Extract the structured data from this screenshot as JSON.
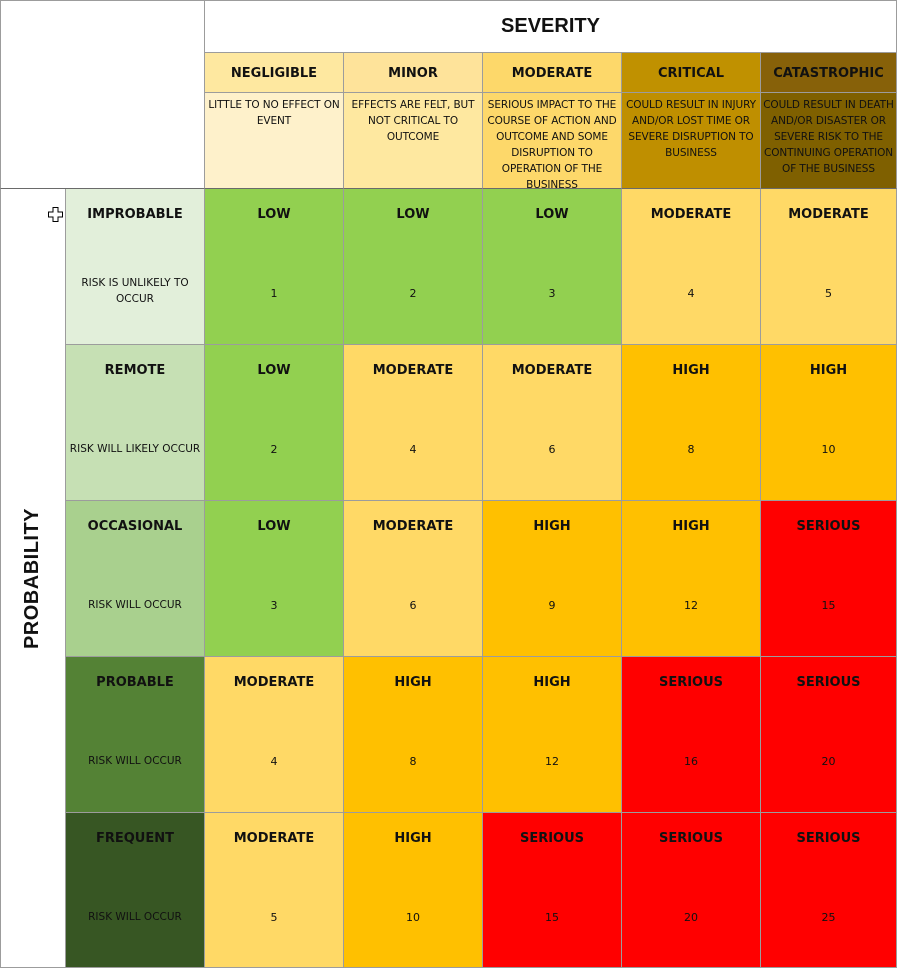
{
  "severity": {
    "title": "SEVERITY",
    "columns": [
      {
        "label": "NEGLIGIBLE",
        "description": "LITTLE TO NO EFFECT ON EVENT",
        "head_color": "#fee8a0",
        "desc_color": "#fef1cb"
      },
      {
        "label": "MINOR",
        "description": "EFFECTS ARE FELT, BUT NOT CRITICAL TO OUTCOME",
        "head_color": "#fee39a",
        "desc_color": "#fee8a0"
      },
      {
        "label": "MODERATE",
        "description": "SERIOUS IMPACT TO THE COURSE OF ACTION AND OUTCOME AND SOME DISRUPTION TO OPERATION OF THE BUSINESS",
        "head_color": "#fdd86a",
        "desc_color": "#fdd86a"
      },
      {
        "label": "CRITICAL",
        "description": "COULD RESULT IN INJURY AND/OR LOST TIME OR SEVERE DISRUPTION TO BUSINESS",
        "head_color": "#c09100",
        "desc_color": "#bf8f00"
      },
      {
        "label": "CATASTROPHIC",
        "description": "COULD RESULT IN DEATH AND/OR DISASTER OR SEVERE RISK TO THE CONTINUING OPERATION OF THE BUSINESS",
        "head_color": "#876109",
        "desc_color": "#7f6000"
      }
    ]
  },
  "probability": {
    "title": "PROBABILITY",
    "rows": [
      {
        "label": "IMPROBABLE",
        "description": "RISK IS UNLIKELY TO OCCUR",
        "color": "#e2efda",
        "text_color": "#111111"
      },
      {
        "label": "REMOTE",
        "description": "RISK WILL LIKELY OCCUR",
        "color": "#c6e0b4",
        "text_color": "#111111"
      },
      {
        "label": "OCCASIONAL",
        "description": "RISK WILL OCCUR",
        "color": "#a9d08e",
        "text_color": "#111111"
      },
      {
        "label": "PROBABLE",
        "description": "RISK WILL OCCUR",
        "color": "#548235",
        "text_color": "#111111"
      },
      {
        "label": "FREQUENT",
        "description": "RISK WILL OCCUR",
        "color": "#375623",
        "text_color": "#111111"
      }
    ]
  },
  "risk_colors": {
    "LOW": "#92d050",
    "MODERATE": "#ffd966",
    "HIGH": "#ffc000",
    "SERIOUS": "#ff0000"
  },
  "matrix": [
    [
      {
        "level": "LOW",
        "score": "1"
      },
      {
        "level": "LOW",
        "score": "2"
      },
      {
        "level": "LOW",
        "score": "3"
      },
      {
        "level": "MODERATE",
        "score": "4"
      },
      {
        "level": "MODERATE",
        "score": "5"
      }
    ],
    [
      {
        "level": "LOW",
        "score": "2"
      },
      {
        "level": "MODERATE",
        "score": "4"
      },
      {
        "level": "MODERATE",
        "score": "6"
      },
      {
        "level": "HIGH",
        "score": "8"
      },
      {
        "level": "HIGH",
        "score": "10"
      }
    ],
    [
      {
        "level": "LOW",
        "score": "3"
      },
      {
        "level": "MODERATE",
        "score": "6"
      },
      {
        "level": "HIGH",
        "score": "9"
      },
      {
        "level": "HIGH",
        "score": "12"
      },
      {
        "level": "SERIOUS",
        "score": "15"
      }
    ],
    [
      {
        "level": "MODERATE",
        "score": "4"
      },
      {
        "level": "HIGH",
        "score": "8"
      },
      {
        "level": "HIGH",
        "score": "12"
      },
      {
        "level": "SERIOUS",
        "score": "16"
      },
      {
        "level": "SERIOUS",
        "score": "20"
      }
    ],
    [
      {
        "level": "MODERATE",
        "score": "5"
      },
      {
        "level": "HIGH",
        "score": "10"
      },
      {
        "level": "SERIOUS",
        "score": "15"
      },
      {
        "level": "SERIOUS",
        "score": "20"
      },
      {
        "level": "SERIOUS",
        "score": "25"
      }
    ]
  ],
  "cursor": {
    "icon": "plus-cursor-icon"
  }
}
